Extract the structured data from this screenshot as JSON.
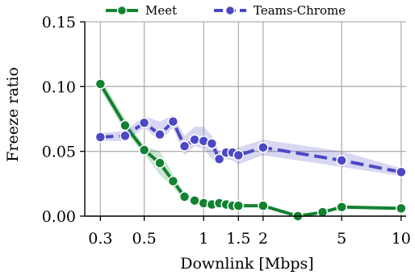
{
  "chart_data": {
    "type": "line",
    "xscale": "log",
    "xlabel": "Downlink [Mbps]",
    "ylabel": "Freeze ratio",
    "xlim": [
      0.25,
      10.6
    ],
    "ylim": [
      0,
      0.15
    ],
    "xticks": [
      0.3,
      0.5,
      1,
      1.5,
      2,
      5,
      10
    ],
    "xtick_labels": [
      "0.3",
      "0.5",
      "1",
      "1.5",
      "2",
      "5",
      "10"
    ],
    "yticks": [
      0,
      0.05,
      0.1,
      0.15
    ],
    "ytick_labels": [
      "0.00",
      "0.05",
      "0.10",
      "0.15"
    ],
    "grid": true,
    "legend_position": "top",
    "series": [
      {
        "name": "Meet",
        "color": "#118230",
        "linestyle": "solid",
        "x": [
          0.3,
          0.4,
          0.5,
          0.6,
          0.7,
          0.8,
          0.9,
          1.0,
          1.1,
          1.2,
          1.3,
          1.4,
          1.5,
          2.0,
          3.0,
          4.0,
          5.0,
          10.0
        ],
        "y": [
          0.102,
          0.07,
          0.051,
          0.041,
          0.027,
          0.015,
          0.012,
          0.01,
          0.009,
          0.01,
          0.009,
          0.008,
          0.008,
          0.008,
          0.0,
          0.003,
          0.007,
          0.006
        ],
        "lower": [
          0.098,
          0.065,
          0.048,
          0.032,
          0.022,
          0.013,
          0.01,
          0.009,
          0.008,
          0.009,
          0.008,
          0.007,
          0.007,
          0.007,
          0.0,
          0.002,
          0.006,
          0.005
        ],
        "upper": [
          0.106,
          0.075,
          0.054,
          0.05,
          0.032,
          0.017,
          0.014,
          0.011,
          0.01,
          0.011,
          0.01,
          0.009,
          0.009,
          0.009,
          0.0,
          0.004,
          0.008,
          0.007
        ]
      },
      {
        "name": "Teams-Chrome",
        "color": "#4c48c4",
        "linestyle": "dashed",
        "x": [
          0.3,
          0.4,
          0.5,
          0.6,
          0.7,
          0.8,
          0.9,
          1.0,
          1.1,
          1.2,
          1.3,
          1.4,
          1.5,
          2.0,
          5.0,
          10.0
        ],
        "y": [
          0.061,
          0.062,
          0.072,
          0.063,
          0.073,
          0.054,
          0.059,
          0.058,
          0.056,
          0.044,
          0.049,
          0.049,
          0.047,
          0.053,
          0.043,
          0.034
        ],
        "lower": [
          0.058,
          0.058,
          0.068,
          0.058,
          0.068,
          0.047,
          0.054,
          0.052,
          0.044,
          0.04,
          0.044,
          0.043,
          0.04,
          0.047,
          0.038,
          0.031
        ],
        "upper": [
          0.064,
          0.066,
          0.077,
          0.073,
          0.078,
          0.062,
          0.069,
          0.069,
          0.062,
          0.05,
          0.052,
          0.052,
          0.053,
          0.059,
          0.05,
          0.037
        ]
      }
    ]
  }
}
